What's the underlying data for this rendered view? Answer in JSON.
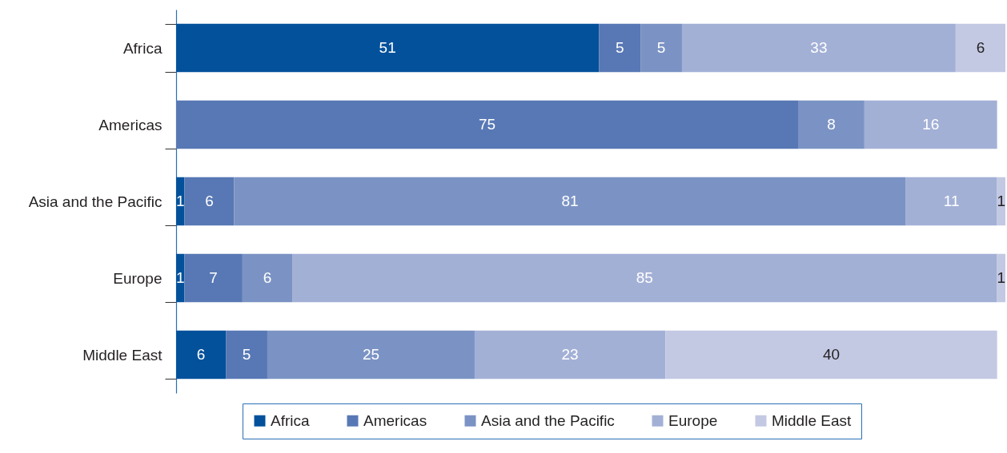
{
  "chart_data": {
    "type": "bar",
    "orientation": "horizontal",
    "stacked": true,
    "categories": [
      "Africa",
      "Americas",
      "Asia and the Pacific",
      "Europe",
      "Middle East"
    ],
    "series": [
      {
        "name": "Africa",
        "color": "#03519b",
        "values": [
          51,
          null,
          1,
          1,
          6
        ]
      },
      {
        "name": "Americas",
        "color": "#5878b5",
        "values": [
          5,
          75,
          6,
          7,
          5
        ]
      },
      {
        "name": "Asia and the Pacific",
        "color": "#7b93c4",
        "values": [
          5,
          8,
          81,
          6,
          25
        ]
      },
      {
        "name": "Europe",
        "color": "#a3b0d6",
        "values": [
          33,
          16,
          11,
          85,
          23
        ]
      },
      {
        "name": "Middle East",
        "color": "#c3c9e3",
        "values": [
          6,
          null,
          1,
          1,
          40
        ]
      }
    ],
    "data_labels": true,
    "legend": "bottom"
  }
}
